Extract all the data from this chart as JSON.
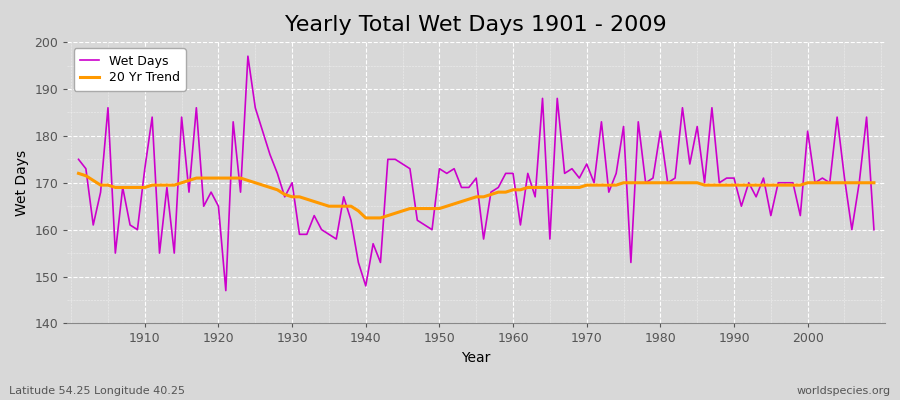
{
  "title": "Yearly Total Wet Days 1901 - 2009",
  "xlabel": "Year",
  "ylabel": "Wet Days",
  "lat_lon_label": "Latitude 54.25 Longitude 40.25",
  "source_label": "worldspecies.org",
  "years": [
    1901,
    1902,
    1903,
    1904,
    1905,
    1906,
    1907,
    1908,
    1909,
    1910,
    1911,
    1912,
    1913,
    1914,
    1915,
    1916,
    1917,
    1918,
    1919,
    1920,
    1921,
    1922,
    1923,
    1924,
    1925,
    1926,
    1927,
    1928,
    1929,
    1930,
    1931,
    1932,
    1933,
    1934,
    1935,
    1936,
    1937,
    1938,
    1939,
    1940,
    1941,
    1942,
    1943,
    1944,
    1945,
    1946,
    1947,
    1948,
    1949,
    1950,
    1951,
    1952,
    1953,
    1954,
    1955,
    1956,
    1957,
    1958,
    1959,
    1960,
    1961,
    1962,
    1963,
    1964,
    1965,
    1966,
    1967,
    1968,
    1969,
    1970,
    1971,
    1972,
    1973,
    1974,
    1975,
    1976,
    1977,
    1978,
    1979,
    1980,
    1981,
    1982,
    1983,
    1984,
    1985,
    1986,
    1987,
    1988,
    1989,
    1990,
    1991,
    1992,
    1993,
    1994,
    1995,
    1996,
    1997,
    1998,
    1999,
    2000,
    2001,
    2002,
    2003,
    2004,
    2005,
    2006,
    2007,
    2008,
    2009
  ],
  "wet_days": [
    175,
    173,
    161,
    168,
    186,
    155,
    169,
    161,
    160,
    173,
    184,
    155,
    169,
    155,
    184,
    168,
    186,
    165,
    168,
    165,
    147,
    183,
    168,
    197,
    186,
    181,
    176,
    172,
    167,
    170,
    159,
    159,
    163,
    160,
    159,
    158,
    167,
    162,
    153,
    148,
    157,
    153,
    175,
    175,
    174,
    173,
    162,
    161,
    160,
    173,
    172,
    173,
    169,
    169,
    171,
    158,
    168,
    169,
    172,
    172,
    161,
    172,
    167,
    188,
    158,
    188,
    172,
    173,
    171,
    174,
    170,
    183,
    168,
    172,
    182,
    153,
    183,
    170,
    171,
    181,
    170,
    171,
    186,
    174,
    182,
    170,
    186,
    170,
    171,
    171,
    165,
    170,
    167,
    171,
    163,
    170,
    170,
    170,
    163,
    181,
    170,
    171,
    170,
    184,
    171,
    160,
    170,
    184,
    160
  ],
  "trend": [
    172.0,
    171.5,
    170.5,
    169.5,
    169.5,
    169.0,
    169.0,
    169.0,
    169.0,
    169.0,
    169.5,
    169.5,
    169.5,
    169.5,
    170.0,
    170.5,
    171.0,
    171.0,
    171.0,
    171.0,
    171.0,
    171.0,
    171.0,
    170.5,
    170.0,
    169.5,
    169.0,
    168.5,
    167.5,
    167.0,
    167.0,
    166.5,
    166.0,
    165.5,
    165.0,
    165.0,
    165.0,
    165.0,
    164.0,
    162.5,
    162.5,
    162.5,
    163.0,
    163.5,
    164.0,
    164.5,
    164.5,
    164.5,
    164.5,
    164.5,
    165.0,
    165.5,
    166.0,
    166.5,
    167.0,
    167.0,
    167.5,
    168.0,
    168.0,
    168.5,
    168.5,
    169.0,
    169.0,
    169.0,
    169.0,
    169.0,
    169.0,
    169.0,
    169.0,
    169.5,
    169.5,
    169.5,
    169.5,
    169.5,
    170.0,
    170.0,
    170.0,
    170.0,
    170.0,
    170.0,
    170.0,
    170.0,
    170.0,
    170.0,
    170.0,
    169.5,
    169.5,
    169.5,
    169.5,
    169.5,
    169.5,
    169.5,
    169.5,
    169.5,
    169.5,
    169.5,
    169.5,
    169.5,
    169.5,
    170.0,
    170.0,
    170.0,
    170.0,
    170.0,
    170.0,
    170.0,
    170.0,
    170.0,
    170.0
  ],
  "wet_color": "#cc00cc",
  "trend_color": "#ff9900",
  "background_color": "#d8d8d8",
  "plot_bg_color": "#d8d8d8",
  "ylim": [
    140,
    200
  ],
  "yticks": [
    140,
    150,
    160,
    170,
    180,
    190,
    200
  ],
  "xticks": [
    1910,
    1920,
    1930,
    1940,
    1950,
    1960,
    1970,
    1980,
    1990,
    2000
  ],
  "title_fontsize": 16,
  "legend_fontsize": 9,
  "axis_fontsize": 10
}
